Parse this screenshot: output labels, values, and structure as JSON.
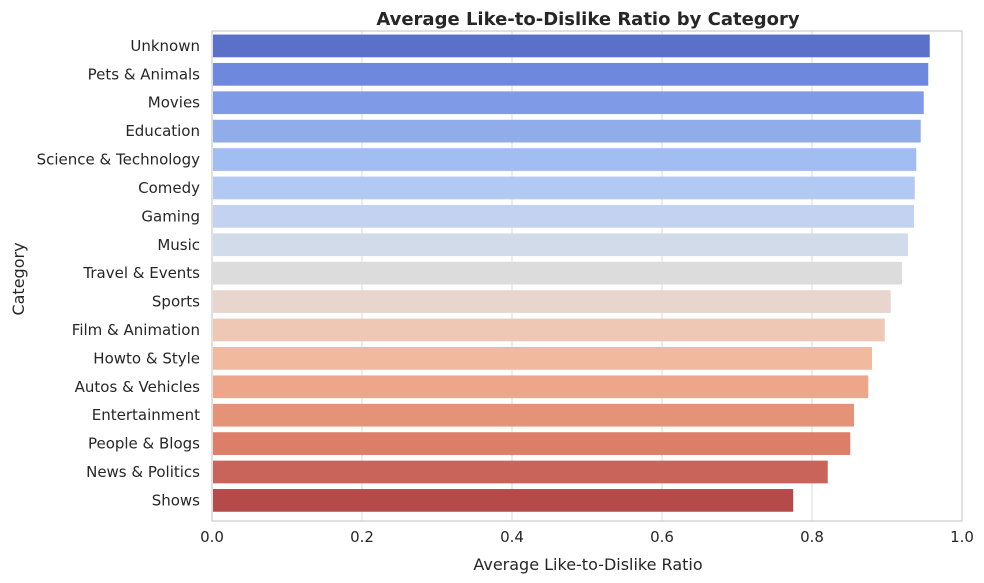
{
  "chart_data": {
    "type": "bar",
    "orientation": "horizontal",
    "title": "Average Like-to-Dislike Ratio by Category",
    "xlabel": "Average Like-to-Dislike Ratio",
    "ylabel": "Category",
    "xlim": [
      0,
      1.0
    ],
    "xticks": [
      "0.0",
      "0.2",
      "0.4",
      "0.6",
      "0.8",
      "1.0"
    ],
    "grid": "vertical",
    "categories": [
      "Unknown",
      "Pets & Animals",
      "Movies",
      "Education",
      "Science & Technology",
      "Comedy",
      "Gaming",
      "Music",
      "Travel & Events",
      "Sports",
      "Film & Animation",
      "Howto & Style",
      "Autos & Vehicles",
      "Entertainment",
      "People & Blogs",
      "News & Politics",
      "Shows"
    ],
    "values": [
      0.957,
      0.955,
      0.949,
      0.945,
      0.939,
      0.937,
      0.936,
      0.928,
      0.92,
      0.905,
      0.897,
      0.88,
      0.875,
      0.856,
      0.851,
      0.821,
      0.775
    ],
    "colors": [
      "#5b70c9",
      "#6e88de",
      "#7f9ae6",
      "#90ade9",
      "#a2bdf2",
      "#b2c9f4",
      "#c3d2f0",
      "#d1dbea",
      "#dcdcdc",
      "#e8d5cd",
      "#efc8b5",
      "#f1b99d",
      "#eda68a",
      "#e49379",
      "#dd7e68",
      "#c8645a",
      "#b54a4a"
    ]
  }
}
